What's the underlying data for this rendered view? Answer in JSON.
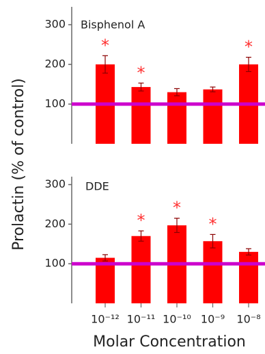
{
  "axis_labels": {
    "y": "Prolactin (% of control)",
    "x": "Molar Concentration"
  },
  "chart_data": [
    {
      "type": "bar",
      "title": "Bisphenol A",
      "values": [
        200,
        143,
        130,
        137,
        200
      ],
      "errors": [
        22,
        10,
        9,
        6,
        18
      ],
      "significance_labels": [
        "*",
        "*",
        null,
        null,
        "*"
      ],
      "color": "#ff0000",
      "ylim": [
        0,
        345
      ],
      "yticks": [
        100,
        200,
        300
      ],
      "reference_line": 100,
      "reference_color": "#cc00cc"
    },
    {
      "type": "bar",
      "title": "DDE",
      "categories": [
        "10⁻¹²",
        "10⁻¹¹",
        "10⁻¹⁰",
        "10⁻⁹",
        "10⁻⁸"
      ],
      "values": [
        115,
        170,
        197,
        157,
        130
      ],
      "errors": [
        8,
        13,
        18,
        17,
        8
      ],
      "significance_labels": [
        null,
        "*",
        "*",
        "*",
        null
      ],
      "color": "#ff0000",
      "ylim": [
        0,
        320
      ],
      "yticks": [
        100,
        200,
        300
      ],
      "reference_line": 100,
      "reference_color": "#cc00cc"
    }
  ]
}
